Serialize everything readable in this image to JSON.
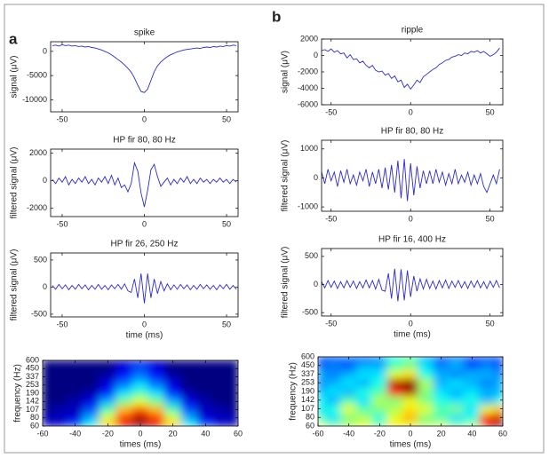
{
  "panel_labels": [
    "a",
    "b"
  ],
  "chart_data": [
    {
      "type": "line",
      "title": "spike",
      "ylabel": "signal (μV)",
      "color": "#2b2bd0",
      "x": [
        -56,
        -54,
        -52,
        -50,
        -48,
        -46,
        -44,
        -42,
        -40,
        -38,
        -36,
        -34,
        -32,
        -30,
        -28,
        -26,
        -24,
        -22,
        -20,
        -18,
        -16,
        -14,
        -12,
        -10,
        -8,
        -6,
        -4,
        -2,
        0,
        2,
        4,
        6,
        8,
        10,
        12,
        14,
        16,
        18,
        20,
        22,
        24,
        26,
        28,
        30,
        32,
        34,
        36,
        38,
        40,
        42,
        44,
        46,
        48,
        50,
        52,
        54,
        56
      ],
      "values": [
        1200,
        1300,
        1100,
        1400,
        1200,
        1300,
        1100,
        1200,
        1000,
        1100,
        900,
        1000,
        800,
        700,
        500,
        300,
        0,
        -300,
        -700,
        -1200,
        -1700,
        -2200,
        -2800,
        -3500,
        -4300,
        -5500,
        -7000,
        -8300,
        -8500,
        -7800,
        -6000,
        -4200,
        -3000,
        -2200,
        -1600,
        -1100,
        -700,
        -400,
        -100,
        100,
        300,
        400,
        500,
        600,
        700,
        600,
        800,
        900,
        800,
        1000,
        900,
        1100,
        1000,
        1200,
        1100,
        1300,
        1200
      ],
      "xlim": [
        -57,
        57
      ],
      "xticks": [
        -50,
        0,
        50
      ],
      "ylim": [
        -12500,
        2000
      ],
      "yticks": [
        -10000,
        -5000,
        0
      ]
    },
    {
      "type": "line",
      "title": "HP fir 80, 80 Hz",
      "ylabel": "filtered signal (μV)",
      "color": "#2b2bd0",
      "x": [
        -56,
        -54,
        -52,
        -50,
        -48,
        -46,
        -44,
        -42,
        -40,
        -38,
        -36,
        -34,
        -32,
        -30,
        -28,
        -26,
        -24,
        -22,
        -20,
        -18,
        -16,
        -14,
        -12,
        -10,
        -8,
        -6,
        -4,
        -2,
        0,
        2,
        4,
        6,
        8,
        10,
        12,
        14,
        16,
        18,
        20,
        22,
        24,
        26,
        28,
        30,
        32,
        34,
        36,
        38,
        40,
        42,
        44,
        46,
        48,
        50,
        52,
        54,
        56
      ],
      "values": [
        100,
        -200,
        200,
        -100,
        300,
        -300,
        100,
        -200,
        200,
        -100,
        300,
        -200,
        100,
        -300,
        200,
        -100,
        300,
        -200,
        400,
        -300,
        200,
        -500,
        -300,
        -800,
        -200,
        1300,
        700,
        -900,
        -1900,
        -700,
        800,
        1200,
        300,
        -400,
        -100,
        200,
        -300,
        100,
        -200,
        200,
        -100,
        300,
        -200,
        100,
        -200,
        200,
        -100,
        100,
        -200,
        100,
        -100,
        200,
        -100,
        100,
        -200,
        100,
        -100
      ],
      "xlim": [
        -57,
        57
      ],
      "xticks": [
        -50,
        0,
        50
      ],
      "ylim": [
        -2600,
        2300
      ],
      "yticks": [
        -2000,
        0,
        2000
      ]
    },
    {
      "type": "line",
      "title": "HP fir 26, 250 Hz",
      "ylabel": "filtered signal (μV)",
      "xlabel": "time (ms)",
      "color": "#2b2bd0",
      "x": [
        -56,
        -54,
        -52,
        -50,
        -48,
        -46,
        -44,
        -42,
        -40,
        -38,
        -36,
        -34,
        -32,
        -30,
        -28,
        -26,
        -24,
        -22,
        -20,
        -18,
        -16,
        -14,
        -12,
        -10,
        -8,
        -6,
        -4,
        -2,
        0,
        2,
        4,
        6,
        8,
        10,
        12,
        14,
        16,
        18,
        20,
        22,
        24,
        26,
        28,
        30,
        32,
        34,
        36,
        38,
        40,
        42,
        44,
        46,
        48,
        50,
        52,
        54,
        56
      ],
      "values": [
        30,
        -40,
        50,
        -30,
        40,
        -50,
        30,
        -40,
        50,
        -30,
        40,
        -50,
        30,
        -40,
        50,
        -40,
        30,
        -50,
        40,
        -30,
        50,
        -40,
        60,
        -70,
        -100,
        150,
        -200,
        250,
        -300,
        250,
        -200,
        150,
        -120,
        100,
        -70,
        60,
        -50,
        40,
        -40,
        50,
        -30,
        40,
        -50,
        30,
        -40,
        50,
        -30,
        40,
        -40,
        30,
        -50,
        40,
        -30,
        50,
        -40,
        30,
        -40
      ],
      "xlim": [
        -57,
        57
      ],
      "xticks": [
        -50,
        0,
        50
      ],
      "ylim": [
        -550,
        630
      ],
      "yticks": [
        -500,
        0,
        500
      ]
    },
    {
      "type": "heatmap",
      "xlabel": "times (ms)",
      "ylabel": "frequency (Hz)",
      "log_y": true,
      "x": [
        -60,
        -50,
        -40,
        -30,
        -20,
        -10,
        0,
        10,
        20,
        30,
        40,
        50,
        60
      ],
      "y": [
        60,
        80,
        107,
        142,
        190,
        253,
        337,
        450,
        600
      ],
      "z": [
        [
          0.05,
          0.1,
          0.2,
          0.4,
          0.7,
          0.9,
          1,
          0.9,
          0.7,
          0.4,
          0.2,
          0.1,
          0.05
        ],
        [
          0.05,
          0.05,
          0.1,
          0.3,
          0.6,
          0.85,
          0.95,
          0.85,
          0.6,
          0.3,
          0.1,
          0.05,
          0.05
        ],
        [
          0,
          0.05,
          0.05,
          0.2,
          0.45,
          0.7,
          0.8,
          0.7,
          0.45,
          0.2,
          0.05,
          0.05,
          0
        ],
        [
          0,
          0,
          0.05,
          0.1,
          0.3,
          0.5,
          0.6,
          0.5,
          0.3,
          0.1,
          0.05,
          0,
          0
        ],
        [
          0,
          0,
          0,
          0.05,
          0.15,
          0.35,
          0.45,
          0.35,
          0.15,
          0.05,
          0,
          0,
          0
        ],
        [
          0,
          0,
          0,
          0,
          0.1,
          0.25,
          0.35,
          0.25,
          0.1,
          0,
          0,
          0,
          0
        ],
        [
          0,
          0,
          0,
          0,
          0.05,
          0.15,
          0.25,
          0.15,
          0.05,
          0,
          0,
          0,
          0
        ],
        [
          0,
          0,
          0,
          0,
          0,
          0.1,
          0.2,
          0.1,
          0,
          0,
          0,
          0,
          0
        ],
        [
          0,
          0,
          0,
          0,
          0,
          0.05,
          0.1,
          0.05,
          0,
          0,
          0,
          0,
          0
        ]
      ],
      "xlim": [
        -60,
        60
      ],
      "xticks": [
        -60,
        -40,
        -20,
        0,
        20,
        40,
        60
      ],
      "ylim": [
        60,
        600
      ],
      "yticks": [
        60,
        80,
        107,
        142,
        190,
        253,
        337,
        450,
        600
      ]
    },
    {
      "type": "line",
      "title": "ripple",
      "ylabel": "signal (μV)",
      "color": "#2b2bd0",
      "x": [
        -56,
        -54,
        -52,
        -50,
        -48,
        -46,
        -44,
        -42,
        -40,
        -38,
        -36,
        -34,
        -32,
        -30,
        -28,
        -26,
        -24,
        -22,
        -20,
        -18,
        -16,
        -14,
        -12,
        -10,
        -8,
        -6,
        -4,
        -2,
        0,
        2,
        4,
        6,
        8,
        10,
        12,
        14,
        16,
        18,
        20,
        22,
        24,
        26,
        28,
        30,
        32,
        34,
        36,
        38,
        40,
        42,
        44,
        46,
        48,
        50,
        52,
        54,
        56
      ],
      "values": [
        600,
        700,
        500,
        800,
        400,
        600,
        200,
        300,
        -300,
        100,
        -500,
        -400,
        -900,
        -700,
        -1200,
        -1500,
        -1200,
        -1800,
        -2000,
        -1900,
        -2400,
        -2200,
        -2800,
        -2500,
        -3200,
        -3000,
        -3900,
        -3500,
        -4100,
        -3600,
        -3000,
        -3300,
        -2600,
        -2300,
        -2000,
        -1700,
        -1500,
        -1100,
        -900,
        -600,
        -500,
        -200,
        -100,
        100,
        0,
        300,
        200,
        500,
        400,
        600,
        300,
        500,
        200,
        -100,
        100,
        400,
        900
      ],
      "xlim": [
        -56,
        58
      ],
      "xticks": [
        -50,
        0,
        50
      ],
      "ylim": [
        -6000,
        2000
      ],
      "yticks": [
        -6000,
        -4000,
        -2000,
        0,
        2000
      ]
    },
    {
      "type": "line",
      "title": "HP fir 80, 80 Hz",
      "ylabel": "filtered signal (μV)",
      "color": "#2b2bd0",
      "x": [
        -56,
        -54,
        -52,
        -50,
        -48,
        -46,
        -44,
        -42,
        -40,
        -38,
        -36,
        -34,
        -32,
        -30,
        -28,
        -26,
        -24,
        -22,
        -20,
        -18,
        -16,
        -14,
        -12,
        -10,
        -8,
        -6,
        -4,
        -2,
        0,
        2,
        4,
        6,
        8,
        10,
        12,
        14,
        16,
        18,
        20,
        22,
        24,
        26,
        28,
        30,
        32,
        34,
        36,
        38,
        40,
        42,
        44,
        46,
        48,
        50,
        52,
        54,
        56
      ],
      "values": [
        200,
        -200,
        300,
        -100,
        200,
        -300,
        250,
        -150,
        300,
        -200,
        100,
        -250,
        200,
        -100,
        300,
        -300,
        200,
        -200,
        300,
        -350,
        350,
        -400,
        450,
        -500,
        600,
        -700,
        650,
        -800,
        500,
        -600,
        400,
        -350,
        250,
        -200,
        250,
        -200,
        300,
        -150,
        200,
        -250,
        150,
        -200,
        300,
        -200,
        100,
        -150,
        200,
        -250,
        100,
        -200,
        150,
        -300,
        -500,
        -200,
        100,
        -200,
        300
      ],
      "xlim": [
        -56,
        58
      ],
      "xticks": [
        -50,
        0,
        50
      ],
      "ylim": [
        -1150,
        1300
      ],
      "yticks": [
        -1000,
        0,
        1000
      ]
    },
    {
      "type": "line",
      "title": "HP fir 16, 400 Hz",
      "ylabel": "filtered signal (μV)",
      "xlabel": "time (ms)",
      "color": "#2b2bd0",
      "x": [
        -56,
        -54,
        -52,
        -50,
        -48,
        -46,
        -44,
        -42,
        -40,
        -38,
        -36,
        -34,
        -32,
        -30,
        -28,
        -26,
        -24,
        -22,
        -20,
        -18,
        -16,
        -14,
        -12,
        -10,
        -8,
        -6,
        -4,
        -2,
        0,
        2,
        4,
        6,
        8,
        10,
        12,
        14,
        16,
        18,
        20,
        22,
        24,
        26,
        28,
        30,
        32,
        34,
        36,
        38,
        40,
        42,
        44,
        46,
        48,
        50,
        52,
        54,
        56
      ],
      "values": [
        50,
        -60,
        70,
        -50,
        60,
        -70,
        50,
        -60,
        70,
        -50,
        60,
        -70,
        50,
        -60,
        80,
        -60,
        70,
        -80,
        90,
        -100,
        -120,
        200,
        -250,
        280,
        -300,
        270,
        -280,
        250,
        -220,
        150,
        -120,
        100,
        -80,
        90,
        -70,
        60,
        -80,
        70,
        -60,
        80,
        -70,
        60,
        -50,
        70,
        -60,
        50,
        -70,
        60,
        -50,
        70,
        -60,
        50,
        -70,
        60,
        -50,
        70,
        -60
      ],
      "xlim": [
        -56,
        58
      ],
      "xticks": [
        -50,
        0,
        50
      ],
      "ylim": [
        -560,
        640
      ],
      "yticks": [
        -500,
        0,
        500
      ]
    },
    {
      "type": "heatmap",
      "xlabel": "times (ms)",
      "ylabel": "frequency (Hz)",
      "log_y": true,
      "x": [
        -60,
        -50,
        -40,
        -30,
        -20,
        -10,
        0,
        10,
        20,
        30,
        40,
        50,
        60
      ],
      "y": [
        60,
        80,
        107,
        142,
        190,
        253,
        337,
        450,
        600
      ],
      "z": [
        [
          0.6,
          0.5,
          0.55,
          0.6,
          0.5,
          0.65,
          0.6,
          0.55,
          0.6,
          0.5,
          0.55,
          0.9,
          1
        ],
        [
          0.45,
          0.35,
          0.5,
          0.55,
          0.4,
          0.6,
          0.7,
          0.5,
          0.45,
          0.35,
          0.4,
          0.85,
          0.95
        ],
        [
          0.35,
          0.4,
          0.6,
          0.45,
          0.5,
          0.55,
          0.65,
          0.6,
          0.45,
          0.5,
          0.35,
          0.6,
          0.7
        ],
        [
          0.4,
          0.3,
          0.45,
          0.35,
          0.55,
          0.5,
          0.6,
          0.5,
          0.4,
          0.35,
          0.4,
          0.3,
          0.4
        ],
        [
          0.3,
          0.35,
          0.3,
          0.4,
          0.45,
          0.85,
          0.95,
          0.5,
          0.35,
          0.3,
          0.35,
          0.3,
          0.3
        ],
        [
          0.25,
          0.3,
          0.35,
          0.3,
          0.4,
          0.95,
          1,
          0.55,
          0.3,
          0.35,
          0.3,
          0.25,
          0.3
        ],
        [
          0.3,
          0.25,
          0.3,
          0.35,
          0.35,
          0.6,
          0.65,
          0.4,
          0.3,
          0.25,
          0.3,
          0.3,
          0.25
        ],
        [
          0.2,
          0.25,
          0.2,
          0.3,
          0.3,
          0.45,
          0.5,
          0.35,
          0.25,
          0.3,
          0.2,
          0.25,
          0.2
        ],
        [
          0.2,
          0.2,
          0.25,
          0.2,
          0.25,
          0.4,
          0.45,
          0.3,
          0.2,
          0.25,
          0.2,
          0.2,
          0.2
        ]
      ],
      "xlim": [
        -60,
        60
      ],
      "xticks": [
        -60,
        -40,
        -20,
        0,
        20,
        40,
        60
      ],
      "ylim": [
        60,
        600
      ],
      "yticks": [
        60,
        80,
        107,
        142,
        190,
        253,
        337,
        450,
        600
      ]
    }
  ]
}
